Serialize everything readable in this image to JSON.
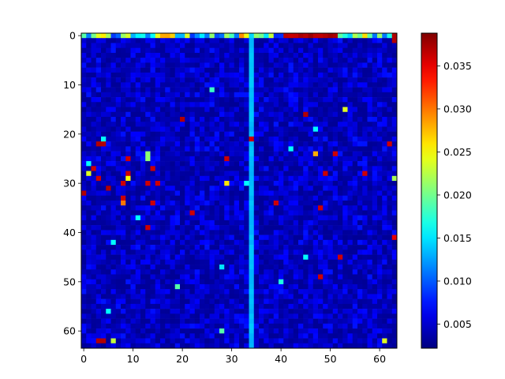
{
  "chart_data": {
    "type": "heatmap",
    "title": "",
    "xlabel": "",
    "ylabel": "",
    "size": [
      64,
      64
    ],
    "x_ticks": [
      0,
      10,
      20,
      30,
      40,
      50,
      60
    ],
    "y_ticks": [
      0,
      10,
      20,
      30,
      40,
      50,
      60
    ],
    "colormap": "jet",
    "colorbar": {
      "range": [
        0.0022,
        0.0388
      ],
      "ticks": [
        "0.005",
        "0.010",
        "0.015",
        "0.020",
        "0.025",
        "0.030",
        "0.035"
      ],
      "tick_values": [
        0.005,
        0.01,
        0.015,
        0.02,
        0.025,
        0.03,
        0.035
      ]
    },
    "background_range": [
      0.003,
      0.0075
    ],
    "column_34_value": 0.0135,
    "top_row_value_range": [
      0.008,
      0.03
    ],
    "hot_cells": [
      {
        "x": 63,
        "y": 1,
        "value": 0.037
      },
      {
        "x": 45,
        "y": 16,
        "value": 0.037
      },
      {
        "x": 20,
        "y": 17,
        "value": 0.037
      },
      {
        "x": 34,
        "y": 21,
        "value": 0.036
      },
      {
        "x": 3,
        "y": 22,
        "value": 0.037
      },
      {
        "x": 4,
        "y": 22,
        "value": 0.037
      },
      {
        "x": 62,
        "y": 22,
        "value": 0.036
      },
      {
        "x": 47,
        "y": 24,
        "value": 0.028
      },
      {
        "x": 51,
        "y": 24,
        "value": 0.036
      },
      {
        "x": 29,
        "y": 25,
        "value": 0.036
      },
      {
        "x": 9,
        "y": 25,
        "value": 0.036
      },
      {
        "x": 2,
        "y": 27,
        "value": 0.036
      },
      {
        "x": 14,
        "y": 27,
        "value": 0.036
      },
      {
        "x": 9,
        "y": 28,
        "value": 0.036
      },
      {
        "x": 49,
        "y": 28,
        "value": 0.036
      },
      {
        "x": 57,
        "y": 28,
        "value": 0.036
      },
      {
        "x": 3,
        "y": 29,
        "value": 0.036
      },
      {
        "x": 8,
        "y": 30,
        "value": 0.036
      },
      {
        "x": 13,
        "y": 30,
        "value": 0.036
      },
      {
        "x": 15,
        "y": 30,
        "value": 0.036
      },
      {
        "x": 5,
        "y": 31,
        "value": 0.037
      },
      {
        "x": 0,
        "y": 32,
        "value": 0.037
      },
      {
        "x": 8,
        "y": 33,
        "value": 0.036
      },
      {
        "x": 8,
        "y": 34,
        "value": 0.03
      },
      {
        "x": 14,
        "y": 34,
        "value": 0.036
      },
      {
        "x": 39,
        "y": 34,
        "value": 0.036
      },
      {
        "x": 48,
        "y": 35,
        "value": 0.036
      },
      {
        "x": 22,
        "y": 36,
        "value": 0.036
      },
      {
        "x": 13,
        "y": 39,
        "value": 0.036
      },
      {
        "x": 63,
        "y": 41,
        "value": 0.035
      },
      {
        "x": 52,
        "y": 45,
        "value": 0.036
      },
      {
        "x": 48,
        "y": 49,
        "value": 0.036
      },
      {
        "x": 4,
        "y": 62,
        "value": 0.037
      },
      {
        "x": 3,
        "y": 62,
        "value": 0.037
      }
    ],
    "light_cells": [
      {
        "x": 26,
        "y": 11,
        "value": 0.018
      },
      {
        "x": 53,
        "y": 15,
        "value": 0.024
      },
      {
        "x": 47,
        "y": 19,
        "value": 0.016
      },
      {
        "x": 4,
        "y": 21,
        "value": 0.016
      },
      {
        "x": 42,
        "y": 23,
        "value": 0.016
      },
      {
        "x": 13,
        "y": 24,
        "value": 0.021
      },
      {
        "x": 13,
        "y": 25,
        "value": 0.021
      },
      {
        "x": 1,
        "y": 26,
        "value": 0.016
      },
      {
        "x": 1,
        "y": 28,
        "value": 0.024
      },
      {
        "x": 63,
        "y": 29,
        "value": 0.022
      },
      {
        "x": 9,
        "y": 29,
        "value": 0.025
      },
      {
        "x": 29,
        "y": 30,
        "value": 0.026
      },
      {
        "x": 33,
        "y": 30,
        "value": 0.016
      },
      {
        "x": 11,
        "y": 37,
        "value": 0.016
      },
      {
        "x": 6,
        "y": 42,
        "value": 0.016
      },
      {
        "x": 45,
        "y": 45,
        "value": 0.016
      },
      {
        "x": 28,
        "y": 47,
        "value": 0.015
      },
      {
        "x": 40,
        "y": 50,
        "value": 0.017
      },
      {
        "x": 19,
        "y": 51,
        "value": 0.019
      },
      {
        "x": 5,
        "y": 56,
        "value": 0.016
      },
      {
        "x": 28,
        "y": 60,
        "value": 0.019
      },
      {
        "x": 6,
        "y": 62,
        "value": 0.023
      },
      {
        "x": 61,
        "y": 62,
        "value": 0.024
      }
    ]
  }
}
